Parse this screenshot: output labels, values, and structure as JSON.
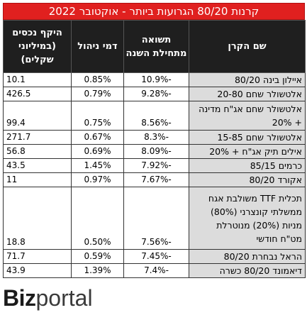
{
  "title": "קרנות 80/20 הגרועות ביותר - אוקטובר 2022",
  "headers": {
    "name": "שם הקרן",
    "return": "תשואה מתחילת השנה",
    "fee": "דמי ניהול",
    "aum": "היקף נכסים (במיליוני שקלים)"
  },
  "rows": [
    {
      "name": "איילון בינה 80/20",
      "return": "-10.9%",
      "fee": "0.85%",
      "aum": "10.1"
    },
    {
      "name": "אלטשולר שחם 20-80",
      "return": "-9.28%",
      "fee": "0.79%",
      "aum": "426.5"
    },
    {
      "name": "אלטשולר שחם אג\"ח מדינה + 20%",
      "return": "-8.56%",
      "fee": "0.75%",
      "aum": "99.4"
    },
    {
      "name": "אלטשולר שחם 15-85",
      "return": "-8.3%",
      "fee": "0.67%",
      "aum": "271.7"
    },
    {
      "name": "אילים תיק אג\"ח + 20%",
      "return": "-8.09%",
      "fee": "0.69%",
      "aum": "56.8"
    },
    {
      "name": "כרמים 85/15",
      "return": "-7.92%",
      "fee": "1.45%",
      "aum": "43.5"
    },
    {
      "name": "אקורד 80/20",
      "return": "-7.67%",
      "fee": "0.97%",
      "aum": "11"
    },
    {
      "name": "תכלית TTF משולבת אגח ממשלתי קונצרני (80%) מניות (20%) מנוטרלת מט\"ח חודשי",
      "return": "-7.56%",
      "fee": "0.50%",
      "aum": "18.8"
    },
    {
      "name": "הראל נבחרת 80/20",
      "return": "-7.45%",
      "fee": "0.59%",
      "aum": "71.7"
    },
    {
      "name": "דיאמונד 80/20 כשרה",
      "return": "-7.4%",
      "fee": "1.39%",
      "aum": "43.9"
    }
  ],
  "logo": {
    "part1": "Biz",
    "part2": "portal"
  }
}
